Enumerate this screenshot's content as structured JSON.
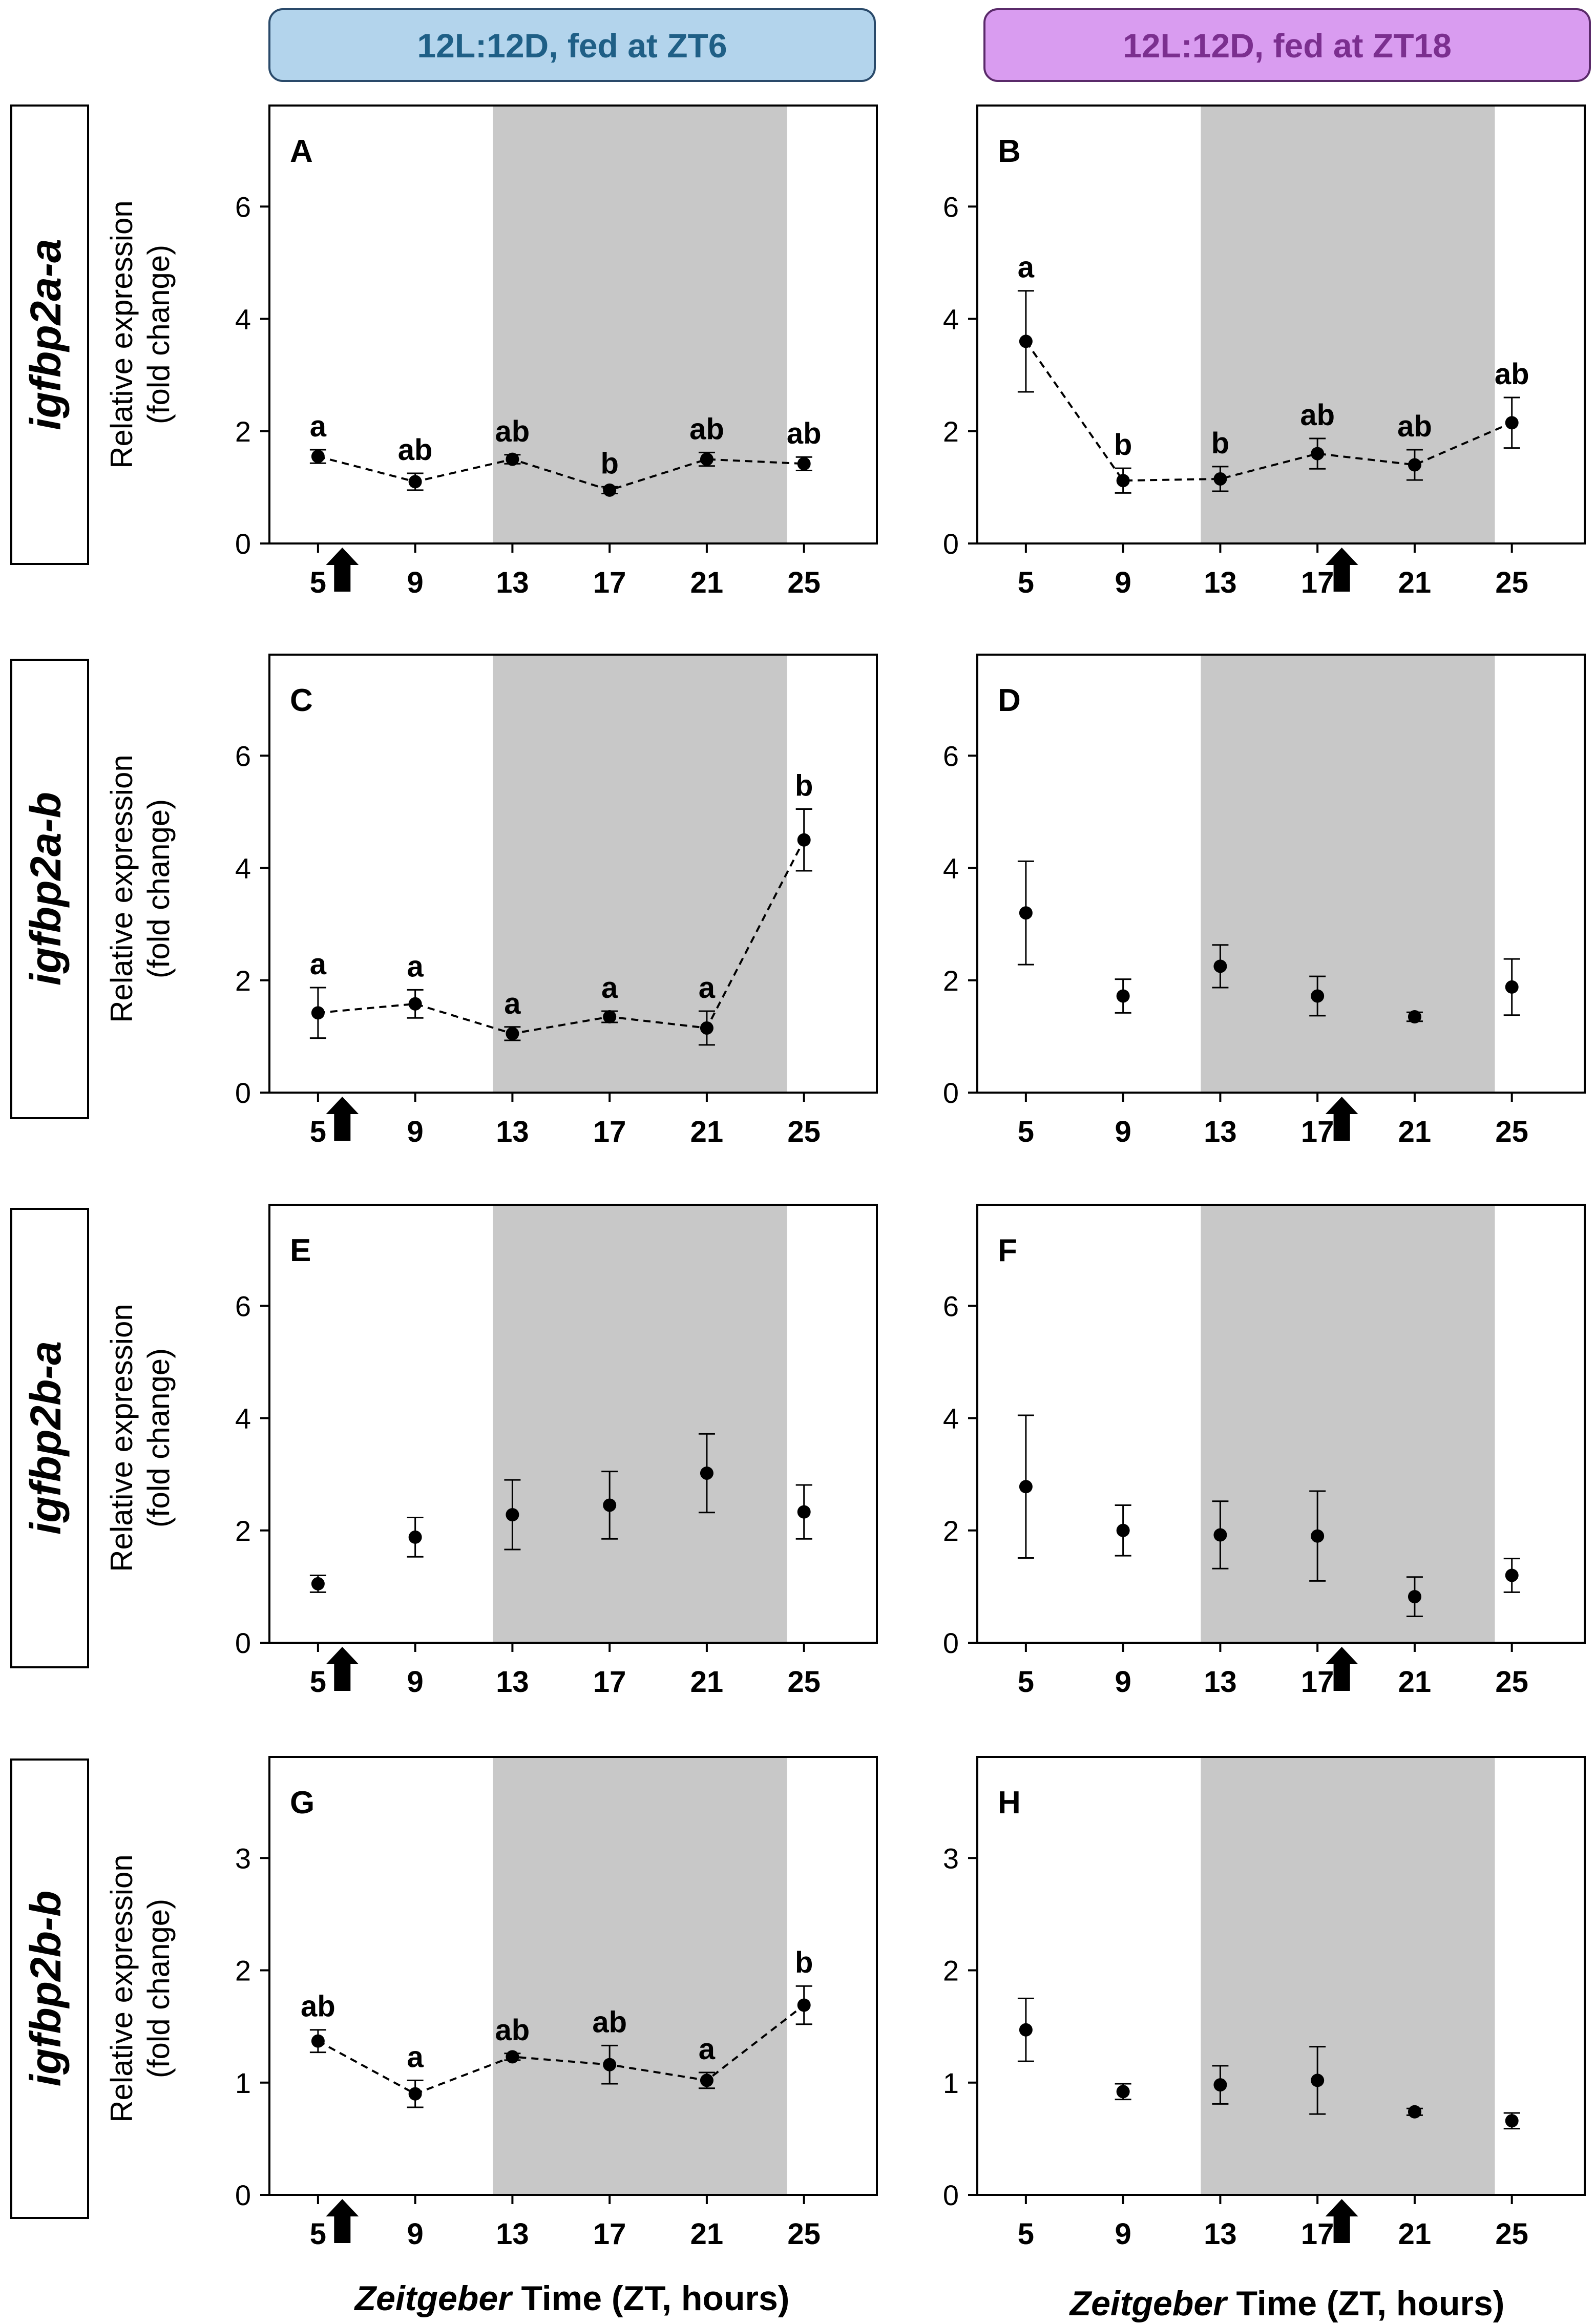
{
  "figure": {
    "columns": [
      {
        "header": "12L:12D, fed at ZT6",
        "header_fill": "#b3d4ec",
        "header_text_color": "#1f5f86"
      },
      {
        "header": "12L:12D, fed at ZT18",
        "header_fill": "#d99cf0",
        "header_text_color": "#7b2f8f"
      }
    ],
    "rows": [
      {
        "gene": "igfbp2a-a"
      },
      {
        "gene": "igfbp2a-b"
      },
      {
        "gene": "igfbp2b-a"
      },
      {
        "gene": "igfbp2b-b"
      }
    ],
    "xlabel_italic": "Zeitgeber",
    "xlabel_rest": " Time (ZT, hours)",
    "ylabel_line1": "Relative expression",
    "ylabel_line2": "(fold change)",
    "colors": {
      "dark_phase": "#c8c8c8",
      "marker": "#000000",
      "frame": "#000000"
    }
  },
  "chart_data": [
    {
      "panel": "A",
      "type": "line",
      "row": 0,
      "col": 0,
      "ylim": [
        0,
        7.8
      ],
      "yticks": [
        0,
        2,
        4,
        6
      ],
      "x": [
        5,
        9,
        13,
        17,
        21,
        25
      ],
      "y": [
        1.55,
        1.1,
        1.5,
        0.95,
        1.5,
        1.42
      ],
      "err": [
        0.12,
        0.15,
        0.08,
        0.06,
        0.12,
        0.12
      ],
      "letters": [
        "a",
        "ab",
        "ab",
        "b",
        "ab",
        "ab"
      ],
      "connected": true,
      "dark_phase": [
        12.2,
        24.3
      ],
      "feeding_zt": 6
    },
    {
      "panel": "B",
      "type": "line",
      "row": 0,
      "col": 1,
      "ylim": [
        0,
        7.8
      ],
      "yticks": [
        0,
        2,
        4,
        6
      ],
      "x": [
        5,
        9,
        13,
        17,
        21,
        25
      ],
      "y": [
        3.6,
        1.12,
        1.15,
        1.6,
        1.4,
        2.15
      ],
      "err": [
        0.9,
        0.22,
        0.22,
        0.27,
        0.27,
        0.45
      ],
      "letters": [
        "a",
        "b",
        "b",
        "ab",
        "ab",
        "ab"
      ],
      "connected": true,
      "dark_phase": [
        12.2,
        24.3
      ],
      "feeding_zt": 18
    },
    {
      "panel": "C",
      "type": "line",
      "row": 1,
      "col": 0,
      "ylim": [
        0,
        7.8
      ],
      "yticks": [
        0,
        2,
        4,
        6
      ],
      "x": [
        5,
        9,
        13,
        17,
        21,
        25
      ],
      "y": [
        1.42,
        1.58,
        1.05,
        1.35,
        1.15,
        4.5
      ],
      "err": [
        0.45,
        0.25,
        0.12,
        0.1,
        0.3,
        0.55
      ],
      "letters": [
        "a",
        "a",
        "a",
        "a",
        "a",
        "b"
      ],
      "connected": true,
      "dark_phase": [
        12.2,
        24.3
      ],
      "feeding_zt": 6
    },
    {
      "panel": "D",
      "type": "scatter",
      "row": 1,
      "col": 1,
      "ylim": [
        0,
        7.8
      ],
      "yticks": [
        0,
        2,
        4,
        6
      ],
      "x": [
        5,
        9,
        13,
        17,
        21,
        25
      ],
      "y": [
        3.2,
        1.72,
        2.25,
        1.72,
        1.35,
        1.88
      ],
      "err": [
        0.92,
        0.3,
        0.38,
        0.35,
        0.08,
        0.5
      ],
      "letters": [],
      "connected": false,
      "dark_phase": [
        12.2,
        24.3
      ],
      "feeding_zt": 18
    },
    {
      "panel": "E",
      "type": "scatter",
      "row": 2,
      "col": 0,
      "ylim": [
        0,
        7.8
      ],
      "yticks": [
        0,
        2,
        4,
        6
      ],
      "x": [
        5,
        9,
        13,
        17,
        21,
        25
      ],
      "y": [
        1.05,
        1.88,
        2.28,
        2.45,
        3.02,
        2.33
      ],
      "err": [
        0.15,
        0.35,
        0.62,
        0.6,
        0.7,
        0.48
      ],
      "letters": [],
      "connected": false,
      "dark_phase": [
        12.2,
        24.3
      ],
      "feeding_zt": 6
    },
    {
      "panel": "F",
      "type": "scatter",
      "row": 2,
      "col": 1,
      "ylim": [
        0,
        7.8
      ],
      "yticks": [
        0,
        2,
        4,
        6
      ],
      "x": [
        5,
        9,
        13,
        17,
        21,
        25
      ],
      "y": [
        2.78,
        2.0,
        1.92,
        1.9,
        0.82,
        1.2
      ],
      "err": [
        1.27,
        0.45,
        0.6,
        0.8,
        0.35,
        0.3
      ],
      "letters": [],
      "connected": false,
      "dark_phase": [
        12.2,
        24.3
      ],
      "feeding_zt": 18
    },
    {
      "panel": "G",
      "type": "line",
      "row": 3,
      "col": 0,
      "ylim": [
        0,
        3.9
      ],
      "yticks": [
        0,
        1,
        2,
        3
      ],
      "x": [
        5,
        9,
        13,
        17,
        21,
        25
      ],
      "y": [
        1.37,
        0.9,
        1.23,
        1.16,
        1.02,
        1.69
      ],
      "err": [
        0.1,
        0.12,
        0.03,
        0.17,
        0.07,
        0.17
      ],
      "letters": [
        "ab",
        "a",
        "ab",
        "ab",
        "a",
        "b"
      ],
      "connected": true,
      "dark_phase": [
        12.2,
        24.3
      ],
      "feeding_zt": 6
    },
    {
      "panel": "H",
      "type": "scatter",
      "row": 3,
      "col": 1,
      "ylim": [
        0,
        3.9
      ],
      "yticks": [
        0,
        1,
        2,
        3
      ],
      "x": [
        5,
        9,
        13,
        17,
        21,
        25
      ],
      "y": [
        1.47,
        0.92,
        0.98,
        1.02,
        0.74,
        0.66
      ],
      "err": [
        0.28,
        0.07,
        0.17,
        0.3,
        0.03,
        0.07
      ],
      "letters": [],
      "connected": false,
      "dark_phase": [
        12.2,
        24.3
      ],
      "feeding_zt": 18
    }
  ]
}
